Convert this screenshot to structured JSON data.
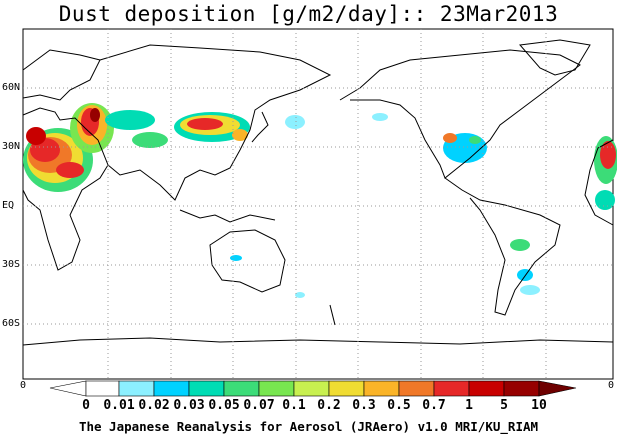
{
  "title": "Dust deposition [g/m2/day]:: 23Mar2013",
  "lat_labels": [
    "60N",
    "30N",
    "EQ",
    "30S",
    "60S"
  ],
  "colorbar": {
    "left_end_label": "0",
    "right_end_label": "0",
    "labels": [
      "0",
      "0.01",
      "0.02",
      "0.03",
      "0.05",
      "0.07",
      "0.1",
      "0.2",
      "0.3",
      "0.5",
      "0.7",
      "1",
      "5",
      "10"
    ],
    "colors": [
      "#ffffff",
      "#8cf0ff",
      "#00d2ff",
      "#00dcb4",
      "#3cdc78",
      "#78e650",
      "#c8f050",
      "#f0dc32",
      "#fab428",
      "#f07828",
      "#e62828",
      "#c80000",
      "#960000",
      "#6e0000"
    ]
  },
  "credit": "The Japanese Reanalysis for Aerosol (JRAero) v1.0 MRI/KU_RIAM"
}
